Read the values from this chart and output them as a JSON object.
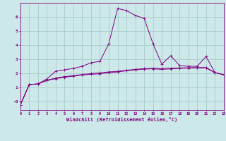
{
  "xlabel": "Windchill (Refroidissement éolien,°C)",
  "background_color": "#cce8e8",
  "grid_color": "#aacccc",
  "line_color": "#800080",
  "x_ticks": [
    0,
    1,
    2,
    3,
    4,
    5,
    6,
    7,
    8,
    9,
    10,
    11,
    12,
    13,
    14,
    15,
    16,
    17,
    18,
    19,
    20,
    21,
    22,
    23
  ],
  "ylim": [
    -0.6,
    7.0
  ],
  "xlim": [
    0,
    23
  ],
  "yticks": [
    0,
    1,
    2,
    3,
    4,
    5,
    6
  ],
  "ytick_labels": [
    "-0",
    "1",
    "2",
    "3",
    "4",
    "5",
    "6"
  ],
  "series1_x": [
    0,
    1,
    2,
    3,
    4,
    5,
    6,
    7,
    8,
    9,
    10,
    11,
    12,
    13,
    14,
    15,
    16,
    17,
    18,
    19,
    20,
    21,
    22,
    23
  ],
  "series1_y": [
    -0.25,
    1.2,
    1.25,
    1.6,
    2.15,
    2.25,
    2.35,
    2.5,
    2.75,
    2.85,
    4.1,
    6.6,
    6.45,
    6.1,
    5.9,
    4.1,
    2.65,
    3.25,
    2.55,
    2.5,
    2.5,
    3.2,
    2.05,
    1.9
  ],
  "series2_x": [
    0,
    1,
    2,
    3,
    4,
    5,
    6,
    7,
    8,
    9,
    10,
    11,
    12,
    13,
    14,
    15,
    16,
    17,
    18,
    19,
    20,
    21,
    22,
    23
  ],
  "series2_y": [
    -0.25,
    1.2,
    1.25,
    1.5,
    1.62,
    1.72,
    1.8,
    1.88,
    1.93,
    1.97,
    2.05,
    2.1,
    2.18,
    2.25,
    2.3,
    2.32,
    2.28,
    2.32,
    2.35,
    2.37,
    2.38,
    2.38,
    2.05,
    1.9
  ],
  "series3_x": [
    0,
    1,
    2,
    3,
    4,
    5,
    6,
    7,
    8,
    9,
    10,
    11,
    12,
    13,
    14,
    15,
    16,
    17,
    18,
    19,
    20,
    21,
    22,
    23
  ],
  "series3_y": [
    -0.25,
    1.2,
    1.25,
    1.5,
    1.67,
    1.77,
    1.83,
    1.92,
    1.98,
    2.03,
    2.1,
    2.14,
    2.22,
    2.28,
    2.33,
    2.36,
    2.33,
    2.36,
    2.38,
    2.4,
    2.41,
    2.41,
    2.05,
    1.9
  ]
}
